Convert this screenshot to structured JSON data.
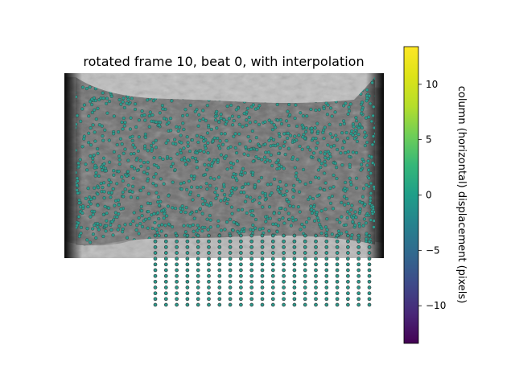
{
  "chart_data": {
    "type": "scatter",
    "title": "rotated frame 10, beat 0, with interpolation",
    "background": "grayscale microscopy image of tissue",
    "marker_color": "#2a9d8f",
    "marker_edge": "#3a3a3a",
    "tracked_points": "dense scatter over tissue region",
    "interpolation_grid": {
      "columns": 21,
      "rows": 13
    },
    "colorbar": {
      "label": "column (horizontal) displacement (pixels)",
      "colormap": "viridis",
      "range": [
        -13.4,
        13.4
      ],
      "ticks": [
        -10,
        -5,
        0,
        5,
        10
      ],
      "tick_labels": [
        "−10",
        "−5",
        "0",
        "5",
        "10"
      ]
    }
  }
}
